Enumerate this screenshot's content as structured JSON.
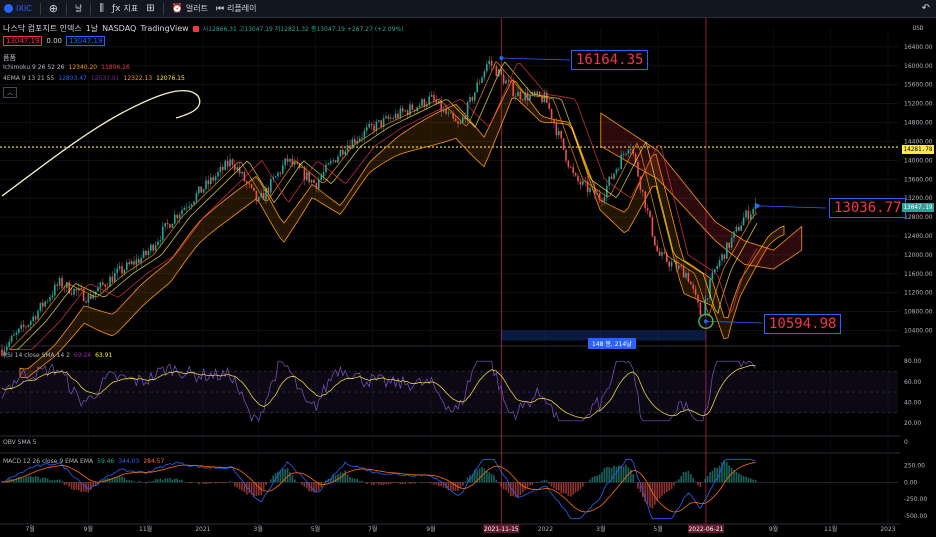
{
  "toolbar": {
    "symbol": "IXIC",
    "interval": "날",
    "indicators": "지표",
    "alerts": "얼러트",
    "replay": "리플레이"
  },
  "header": {
    "title": "나스닥 컴포지트 인덱스",
    "interval": "1날",
    "exchange": "NASDAQ",
    "source": "TradingView",
    "ohlc": "시12866.31  고13047.19  저12821.32  종13047.19  +267.27 (+2.09%)",
    "sell_price": "13047.19",
    "spread": "0.00",
    "buy_price": "13047.19"
  },
  "legends": {
    "volume": "품품",
    "ichimoku_name": "Ichimoku 9 26 52 26",
    "ichimoku_v1": "12340.20",
    "ichimoku_v2": "11806.16",
    "ema_name": "4EMA 9 13 21 55",
    "ema_v1": "12803.47",
    "ema_v2": "12537.91",
    "ema_v3": "12322.13",
    "ema_v4": "12076.15",
    "rsi_name": "RSI 14 close SMA 14 2",
    "rsi_v1": "69.24",
    "rsi_v2": "63.91",
    "obv_name": "OBV SMA 5",
    "macd_name": "MACD 12 26 close 9 EMA EMA",
    "macd_v1": "59.46",
    "macd_v2": "344.03",
    "macd_v3": "284.57"
  },
  "callouts": {
    "high": "16164.35",
    "current": "13036.77",
    "low": "10594.98",
    "range": "148 봉, 214날"
  },
  "price_tags": {
    "level": "14281.78",
    "last": "13047.19",
    "currency": "USD"
  },
  "chart_data": {
    "type": "candlestick",
    "symbol": "NASDAQ Composite (IXIC)",
    "interval": "1D",
    "y_axis_main": {
      "range": [
        10200,
        16800
      ],
      "ticks": [
        "16400.00",
        "16000.00",
        "15600.00",
        "15200.00",
        "14800.00",
        "14400.00",
        "14000.00",
        "13600.00",
        "13200.00",
        "12800.00",
        "12400.00",
        "12000.00",
        "11600.00",
        "11200.00",
        "10800.00",
        "10400.00"
      ]
    },
    "x_axis": {
      "ticks": [
        "7월",
        "9월",
        "11월",
        "2021",
        "3월",
        "5월",
        "7월",
        "9월",
        "2021-11-15",
        "2022",
        "3월",
        "5월",
        "2022-06-21",
        "9월",
        "11월",
        "2023"
      ]
    },
    "price_path": [
      {
        "date": "2020-06",
        "close": 10000
      },
      {
        "date": "2020-07",
        "close": 10600
      },
      {
        "date": "2020-08",
        "close": 11400
      },
      {
        "date": "2020-09",
        "close": 11100
      },
      {
        "date": "2020-10",
        "close": 11600
      },
      {
        "date": "2020-11",
        "close": 12000
      },
      {
        "date": "2020-12",
        "close": 12800
      },
      {
        "date": "2021-02",
        "close": 14000
      },
      {
        "date": "2021-03",
        "close": 13100
      },
      {
        "date": "2021-04",
        "close": 14000
      },
      {
        "date": "2021-05",
        "close": 13500
      },
      {
        "date": "2021-06",
        "close": 14300
      },
      {
        "date": "2021-07",
        "close": 14700
      },
      {
        "date": "2021-08",
        "close": 15000
      },
      {
        "date": "2021-09",
        "close": 15300
      },
      {
        "date": "2021-10",
        "close": 14700
      },
      {
        "date": "2021-11",
        "close": 16100
      },
      {
        "date": "2021-12",
        "close": 15400
      },
      {
        "date": "2022-01",
        "close": 15300
      },
      {
        "date": "2022-02",
        "close": 13600
      },
      {
        "date": "2022-03",
        "close": 13200
      },
      {
        "date": "2022-04",
        "close": 14400
      },
      {
        "date": "2022-05",
        "close": 12000
      },
      {
        "date": "2022-06",
        "close": 11600
      },
      {
        "date": "2022-06-16",
        "close": 10700
      },
      {
        "date": "2022-06-21",
        "close": 11100
      },
      {
        "date": "2022-07",
        "close": 11700
      },
      {
        "date": "2022-08",
        "close": 12800
      },
      {
        "date": "2022-08-15",
        "close": 13047
      }
    ],
    "cloud": [
      {
        "date": "2022-03",
        "a": 15000,
        "b": 14300
      },
      {
        "date": "2022-05",
        "a": 14200,
        "b": 13600
      },
      {
        "date": "2022-07",
        "a": 12700,
        "b": 12300
      },
      {
        "date": "2022-08",
        "a": 12300,
        "b": 11800
      },
      {
        "date": "2022-09",
        "a": 12100,
        "b": 11700
      },
      {
        "date": "2022-10",
        "a": 12600,
        "b": 12100
      }
    ],
    "horizontal_level": 14281.78,
    "annotations": [
      {
        "label": "16164.35",
        "date": "2021-11-15",
        "value": 16164.35
      },
      {
        "label": "10594.98",
        "date": "2022-06-21",
        "value": 10594.98
      },
      {
        "label": "13036.77",
        "date": "2022-08-15",
        "value": 13036.77
      }
    ],
    "rsi": {
      "ticks": [
        "80.00",
        "60.00",
        "40.00",
        "20.00"
      ],
      "range": [
        15,
        88
      ],
      "last": 69.24,
      "sma": 63.91
    },
    "obv": {
      "ticks": [
        "0"
      ]
    },
    "macd": {
      "ticks": [
        "250.00",
        "0.00",
        "-250.00",
        "-500.00"
      ],
      "range": [
        -560,
        360
      ],
      "macd": 344.03,
      "signal": 284.57,
      "histogram": 59.46
    }
  }
}
